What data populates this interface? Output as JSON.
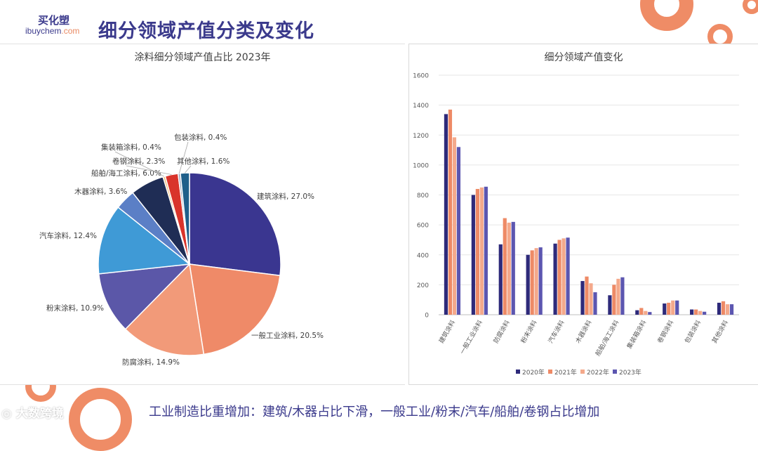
{
  "header": {
    "logo_top": "买化塑",
    "logo_main": "ibuychem",
    "logo_suffix": ".com",
    "title": "细分领域产值分类及变化"
  },
  "footer": {
    "text": "工业制造比重增加：建筑/木器占比下滑，一般工业/粉末/汽车/船舶/卷钢占比增加",
    "watermark": "大数跨境"
  },
  "colors": {
    "brand": "#3b3a8c",
    "accent": "#e98a63",
    "s2020": "#2e2a7a",
    "s2021": "#ee8a66",
    "s2022": "#f4a98b",
    "s2023": "#5c56b0"
  },
  "chart_data": [
    {
      "type": "pie",
      "title": "涂料细分领域产值占比 2023年",
      "slices": [
        {
          "label": "建筑涂料",
          "value": 27.0,
          "display": "建筑涂料, 27.0%",
          "color": "#3a3690"
        },
        {
          "label": "一般工业涂料",
          "value": 20.5,
          "display": "一般工业涂料, 20.5%",
          "color": "#ef8a68"
        },
        {
          "label": "防腐涂料",
          "value": 14.9,
          "display": "防腐涂料, 14.9%",
          "color": "#f29a79"
        },
        {
          "label": "粉末涂料",
          "value": 10.9,
          "display": "粉末涂料, 10.9%",
          "color": "#5b57a8"
        },
        {
          "label": "汽车涂料",
          "value": 12.4,
          "display": "汽车涂料, 12.4%",
          "color": "#3f9ad6"
        },
        {
          "label": "木器涂料",
          "value": 3.6,
          "display": "木器涂料, 3.6%",
          "color": "#5b7fc6"
        },
        {
          "label": "船舶/海工涂料",
          "value": 6.0,
          "display": "船舶/海工涂料, 6.0%",
          "color": "#1f2d55"
        },
        {
          "label": "集装箱涂料",
          "value": 0.4,
          "display": "集装箱涂料, 0.4%",
          "color": "#f0c080"
        },
        {
          "label": "卷钢涂料",
          "value": 2.3,
          "display": "卷钢涂料, 2.3%",
          "color": "#d9342b"
        },
        {
          "label": "包装涂料",
          "value": 0.4,
          "display": "包装涂料, 0.4%",
          "color": "#9aa7c0"
        },
        {
          "label": "其他涂料",
          "value": 1.6,
          "display": "其他涂料, 1.6%",
          "color": "#1f5f8a"
        }
      ]
    },
    {
      "type": "bar",
      "title": "细分领域产值变化",
      "categories": [
        "建筑涂料",
        "一般工业涂料",
        "防腐涂料",
        "粉末涂料",
        "汽车涂料",
        "木器涂料",
        "船舶/海工涂料",
        "集装箱涂料",
        "卷钢涂料",
        "包装涂料",
        "其他涂料"
      ],
      "series": [
        {
          "name": "2020年",
          "values": [
            1340,
            800,
            470,
            400,
            475,
            225,
            130,
            30,
            75,
            35,
            80
          ]
        },
        {
          "name": "2021年",
          "values": [
            1370,
            840,
            645,
            430,
            500,
            255,
            200,
            45,
            80,
            35,
            90
          ]
        },
        {
          "name": "2022年",
          "values": [
            1185,
            850,
            615,
            445,
            510,
            210,
            240,
            25,
            95,
            25,
            70
          ]
        },
        {
          "name": "2023年",
          "values": [
            1120,
            855,
            620,
            450,
            515,
            150,
            250,
            18,
            95,
            20,
            70
          ]
        }
      ],
      "ylim": [
        0,
        1600
      ],
      "yticks": [
        0,
        200,
        400,
        600,
        800,
        1000,
        1200,
        1400,
        1600
      ],
      "grid": true,
      "legend": "bottom"
    }
  ]
}
